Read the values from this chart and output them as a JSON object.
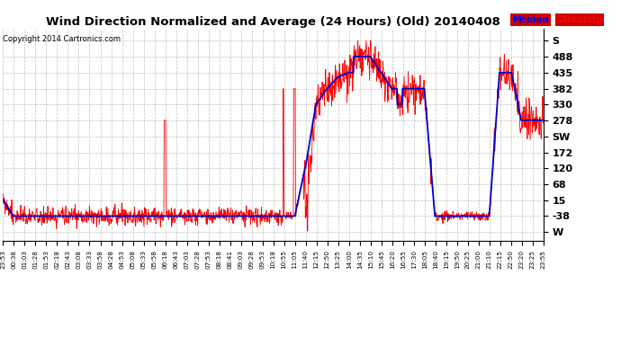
{
  "title": "Wind Direction Normalized and Average (24 Hours) (Old) 20140408",
  "copyright": "Copyright 2014 Cartronics.com",
  "background_color": "#ffffff",
  "plot_bg_color": "#ffffff",
  "grid_color": "#b0b0b0",
  "y_tick_labels": [
    "W",
    "-38",
    "15",
    "68",
    "120",
    "172",
    "SW",
    "278",
    "330",
    "382",
    "435",
    "488",
    "S"
  ],
  "y_tick_values": [
    -91,
    -38,
    15,
    68,
    120,
    172,
    225,
    278,
    330,
    382,
    435,
    488,
    541
  ],
  "ylim": [
    -120,
    580
  ],
  "line_red_color": "#ff0000",
  "line_blue_color": "#0000cc",
  "x_labels": [
    "23:53",
    "00:38",
    "01:03",
    "01:28",
    "01:53",
    "02:18",
    "02:43",
    "03:08",
    "03:33",
    "03:58",
    "04:28",
    "04:53",
    "05:08",
    "05:33",
    "05:58",
    "06:18",
    "06:43",
    "07:03",
    "07:28",
    "07:53",
    "08:18",
    "08:41",
    "09:03",
    "09:28",
    "09:53",
    "10:18",
    "10:55",
    "11:05",
    "11:40",
    "12:15",
    "12:50",
    "13:25",
    "14:00",
    "14:35",
    "15:10",
    "15:45",
    "16:20",
    "16:55",
    "17:30",
    "18:05",
    "18:40",
    "19:15",
    "19:50",
    "20:25",
    "21:00",
    "21:10",
    "22:15",
    "22:50",
    "23:20",
    "23:25",
    "23:55"
  ]
}
